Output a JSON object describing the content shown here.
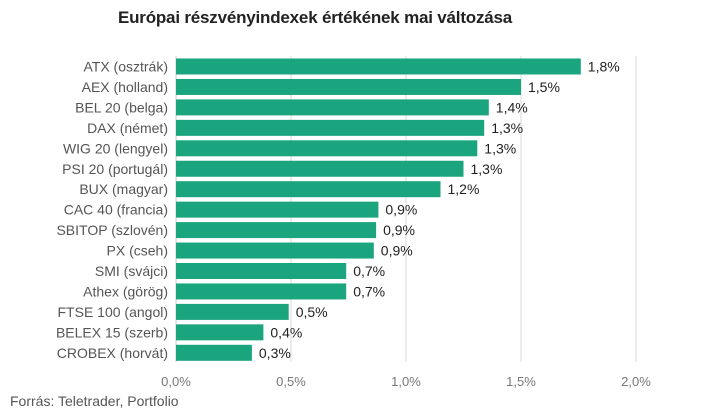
{
  "chart_data": {
    "type": "bar",
    "orientation": "horizontal",
    "title": "Európai részvényindexek értékének mai változása",
    "source": "Forrás: Teletrader, Portfolio",
    "categories": [
      "ATX (osztrák)",
      "AEX (holland)",
      "BEL 20 (belga)",
      "DAX (német)",
      "WIG 20 (lengyel)",
      "PSI 20 (portugál)",
      "BUX (magyar)",
      "CAC 40 (francia)",
      "SBITOP (szlovén)",
      "PX (cseh)",
      "SMI (svájci)",
      "Athex (görög)",
      "FTSE 100 (angol)",
      "BELEX 15 (szerb)",
      "CROBEX (horvát)"
    ],
    "values": [
      1.76,
      1.5,
      1.36,
      1.34,
      1.31,
      1.25,
      1.15,
      0.88,
      0.87,
      0.86,
      0.74,
      0.74,
      0.49,
      0.38,
      0.33
    ],
    "data_labels": [
      "1,8%",
      "1,5%",
      "1,4%",
      "1,3%",
      "1,3%",
      "1,3%",
      "1,2%",
      "0,9%",
      "0,9%",
      "0,9%",
      "0,7%",
      "0,7%",
      "0,5%",
      "0,4%",
      "0,3%"
    ],
    "xlim": [
      0,
      2.0
    ],
    "x_ticks": [
      0,
      0.5,
      1.0,
      1.5,
      2.0
    ],
    "x_tick_labels": [
      "0,0%",
      "0,5%",
      "1,0%",
      "1,5%",
      "2,0%"
    ],
    "grid": true,
    "legend": "none",
    "bar_color": "#1aa57f",
    "grid_color": "#d9d9d9"
  }
}
